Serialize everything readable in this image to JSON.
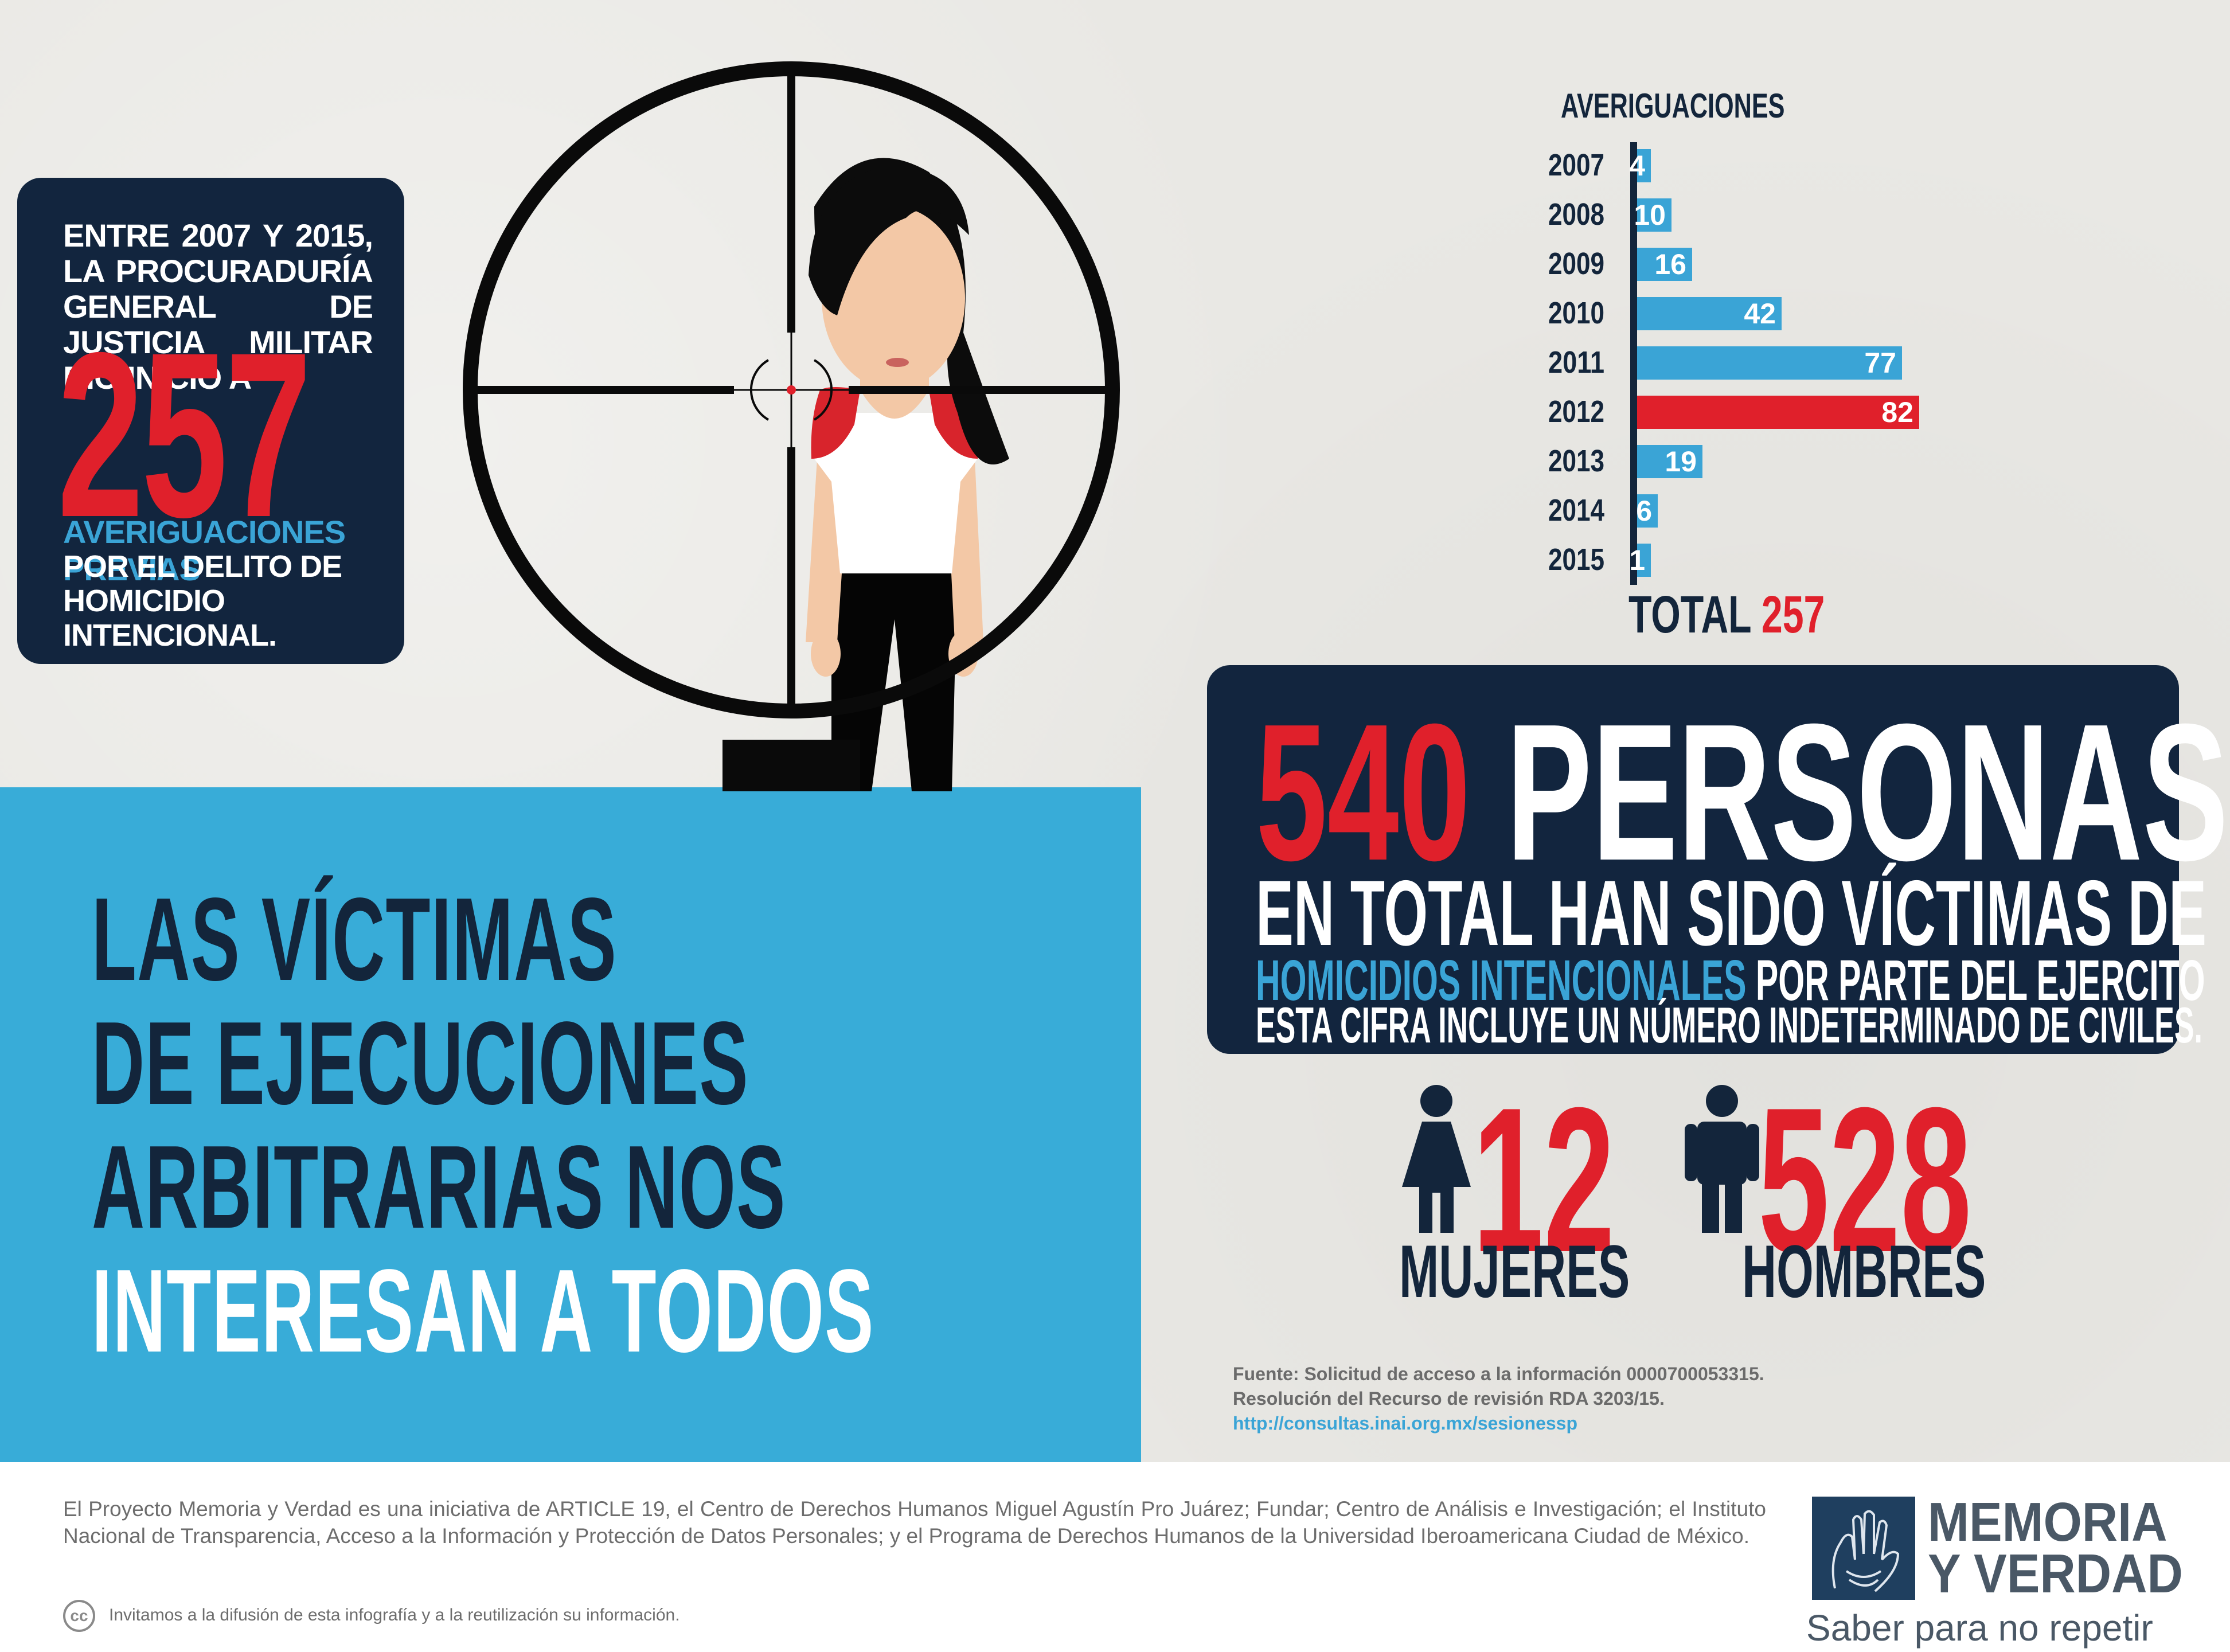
{
  "left_box": {
    "lead": "ENTRE 2007 Y 2015, LA PROCURADURÍA GENERAL DE JUSTICIA MILITAR DIO INICIO A",
    "big_number": "257",
    "highlight": "AVERIGUACIONES PREVIAS",
    "tail": "POR EL DELITO DE HOMICIDIO INTENCIONAL."
  },
  "headline": {
    "line1": "LAS VÍCTIMAS",
    "line2": "DE EJECUCIONES",
    "line3": "ARBITRARIAS NOS",
    "line4": "INTERESAN A TODOS"
  },
  "chart_data": {
    "type": "bar",
    "orientation": "horizontal",
    "title": "AVERIGUACIONES",
    "categories": [
      "2007",
      "2008",
      "2009",
      "2010",
      "2011",
      "2012",
      "2013",
      "2014",
      "2015"
    ],
    "values": [
      4,
      10,
      16,
      42,
      77,
      82,
      19,
      6,
      1
    ],
    "highlight_category": "2012",
    "total_label": "TOTAL",
    "total_value": "257",
    "colors": {
      "bar": "#3aa4d6",
      "highlight": "#e0202b",
      "axis": "#13253b",
      "label": "#ffffff"
    }
  },
  "box540": {
    "number": "540",
    "word": "PERSONAS",
    "line2": "EN TOTAL HAN SIDO VÍCTIMAS DE",
    "line3_highlight": "HOMICIDIOS INTENCIONALES",
    "line3_rest": "POR PARTE DEL EJERCITO",
    "line4": "ESTA CIFRA INCLUYE UN NÚMERO INDETERMINADO DE CIVILES."
  },
  "stats": {
    "women": {
      "number": "12",
      "label": "MUJERES",
      "icon": "woman-icon"
    },
    "men": {
      "number": "528",
      "label": "HOMBRES",
      "icon": "man-icon"
    }
  },
  "source": {
    "line1": "Fuente: Solicitud de acceso a la información 0000700053315.",
    "line2": "Resolución del Recurso de revisión RDA 3203/15.",
    "link": "http://consultas.inai.org.mx/sesionessp"
  },
  "footer": {
    "about": "El Proyecto Memoria y Verdad es una iniciativa de ARTICLE 19, el Centro de Derechos Humanos Miguel Agustín Pro Juárez; Fundar; Centro de Análisis e Investigación; el Instituto Nacional de Transparencia, Acceso a la Información y Protección de Datos Personales; y el Programa de Derechos Humanos de la Universidad Iberoamericana Ciudad de México.",
    "cc_icon": "creative-commons-icon",
    "cc_text": "cc",
    "invite": "Invitamos a la difusión de esta infografía y a la reutilización su información.",
    "brand_line1": "MEMORIA",
    "brand_line2": "Y VERDAD",
    "tagline": "Saber para no repetir"
  }
}
